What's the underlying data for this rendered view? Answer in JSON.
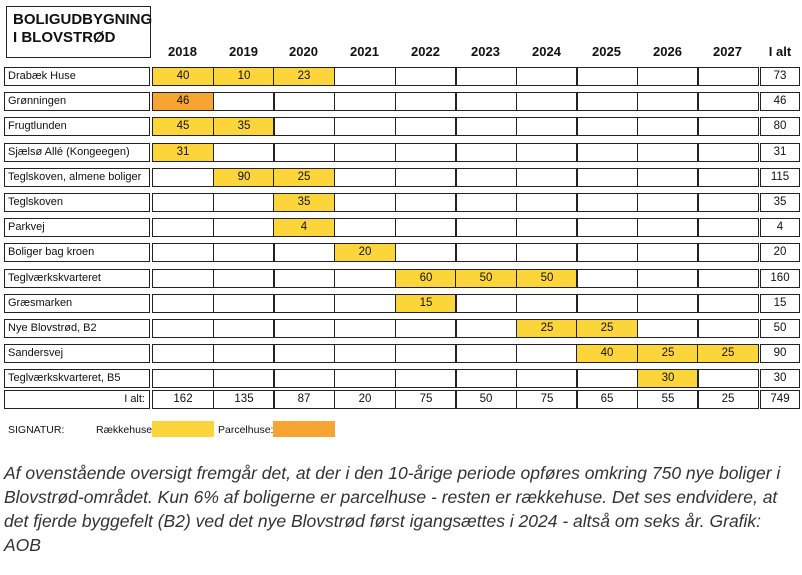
{
  "title": {
    "line1": "BOLIGUDBYGNING",
    "line2": "I BLOVSTRØD"
  },
  "chart_data": {
    "type": "table",
    "columns": [
      "2018",
      "2019",
      "2020",
      "2021",
      "2022",
      "2023",
      "2024",
      "2025",
      "2026",
      "2027",
      "I alt"
    ],
    "rows": [
      {
        "name": "Drabæk Huse",
        "cells": [
          [
            "40",
            "rk"
          ],
          [
            "10",
            "rk"
          ],
          [
            "23",
            "rk"
          ],
          [
            "",
            ""
          ],
          [
            "",
            ""
          ],
          [
            "",
            ""
          ],
          [
            "",
            ""
          ],
          [
            "",
            ""
          ],
          [
            "",
            ""
          ],
          [
            "",
            ""
          ]
        ],
        "total": "73"
      },
      {
        "name": "Grønningen",
        "cells": [
          [
            "46",
            "pc"
          ],
          [
            "",
            ""
          ],
          [
            "",
            ""
          ],
          [
            "",
            ""
          ],
          [
            "",
            ""
          ],
          [
            "",
            ""
          ],
          [
            "",
            ""
          ],
          [
            "",
            ""
          ],
          [
            "",
            ""
          ],
          [
            "",
            ""
          ]
        ],
        "total": "46"
      },
      {
        "name": "Frugtlunden",
        "cells": [
          [
            "45",
            "rk"
          ],
          [
            "35",
            "rk"
          ],
          [
            "",
            ""
          ],
          [
            "",
            ""
          ],
          [
            "",
            ""
          ],
          [
            "",
            ""
          ],
          [
            "",
            ""
          ],
          [
            "",
            ""
          ],
          [
            "",
            ""
          ],
          [
            "",
            ""
          ]
        ],
        "total": "80"
      },
      {
        "name": "Sjælsø Allé (Kongeegen)",
        "cells": [
          [
            "31",
            "rk"
          ],
          [
            "",
            ""
          ],
          [
            "",
            ""
          ],
          [
            "",
            ""
          ],
          [
            "",
            ""
          ],
          [
            "",
            ""
          ],
          [
            "",
            ""
          ],
          [
            "",
            ""
          ],
          [
            "",
            ""
          ],
          [
            "",
            ""
          ]
        ],
        "total": "31"
      },
      {
        "name": "Teglskoven, almene boliger",
        "cells": [
          [
            "",
            ""
          ],
          [
            "90",
            "rk"
          ],
          [
            "25",
            "rk"
          ],
          [
            "",
            ""
          ],
          [
            "",
            ""
          ],
          [
            "",
            ""
          ],
          [
            "",
            ""
          ],
          [
            "",
            ""
          ],
          [
            "",
            ""
          ],
          [
            "",
            ""
          ]
        ],
        "total": "115"
      },
      {
        "name": "Teglskoven",
        "cells": [
          [
            "",
            ""
          ],
          [
            "",
            ""
          ],
          [
            "35",
            "rk"
          ],
          [
            "",
            ""
          ],
          [
            "",
            ""
          ],
          [
            "",
            ""
          ],
          [
            "",
            ""
          ],
          [
            "",
            ""
          ],
          [
            "",
            ""
          ],
          [
            "",
            ""
          ]
        ],
        "total": "35"
      },
      {
        "name": "Parkvej",
        "cells": [
          [
            "",
            ""
          ],
          [
            "",
            ""
          ],
          [
            "4",
            "rk"
          ],
          [
            "",
            ""
          ],
          [
            "",
            ""
          ],
          [
            "",
            ""
          ],
          [
            "",
            ""
          ],
          [
            "",
            ""
          ],
          [
            "",
            ""
          ],
          [
            "",
            ""
          ]
        ],
        "total": "4"
      },
      {
        "name": "Boliger bag kroen",
        "cells": [
          [
            "",
            ""
          ],
          [
            "",
            ""
          ],
          [
            "",
            ""
          ],
          [
            "20",
            "rk"
          ],
          [
            "",
            ""
          ],
          [
            "",
            ""
          ],
          [
            "",
            ""
          ],
          [
            "",
            ""
          ],
          [
            "",
            ""
          ],
          [
            "",
            ""
          ]
        ],
        "total": "20"
      },
      {
        "name": "Teglværkskvarteret",
        "cells": [
          [
            "",
            ""
          ],
          [
            "",
            ""
          ],
          [
            "",
            ""
          ],
          [
            "",
            ""
          ],
          [
            "60",
            "rk"
          ],
          [
            "50",
            "rk"
          ],
          [
            "50",
            "rk"
          ],
          [
            "",
            ""
          ],
          [
            "",
            ""
          ],
          [
            "",
            ""
          ]
        ],
        "total": "160"
      },
      {
        "name": "Græsmarken",
        "cells": [
          [
            "",
            ""
          ],
          [
            "",
            ""
          ],
          [
            "",
            ""
          ],
          [
            "",
            ""
          ],
          [
            "15",
            "rk"
          ],
          [
            "",
            ""
          ],
          [
            "",
            ""
          ],
          [
            "",
            ""
          ],
          [
            "",
            ""
          ],
          [
            "",
            ""
          ]
        ],
        "total": "15"
      },
      {
        "name": "Nye Blovstrød, B2",
        "cells": [
          [
            "",
            ""
          ],
          [
            "",
            ""
          ],
          [
            "",
            ""
          ],
          [
            "",
            ""
          ],
          [
            "",
            ""
          ],
          [
            "",
            ""
          ],
          [
            "25",
            "rk"
          ],
          [
            "25",
            "rk"
          ],
          [
            "",
            ""
          ],
          [
            "",
            ""
          ]
        ],
        "total": "50"
      },
      {
        "name": "Sandersvej",
        "cells": [
          [
            "",
            ""
          ],
          [
            "",
            ""
          ],
          [
            "",
            ""
          ],
          [
            "",
            ""
          ],
          [
            "",
            ""
          ],
          [
            "",
            ""
          ],
          [
            "",
            ""
          ],
          [
            "40",
            "rk"
          ],
          [
            "25",
            "rk"
          ],
          [
            "25",
            "rk"
          ]
        ],
        "total": "90"
      },
      {
        "name": "Teglværkskvarteret, B5",
        "cells": [
          [
            "",
            ""
          ],
          [
            "",
            ""
          ],
          [
            "",
            ""
          ],
          [
            "",
            ""
          ],
          [
            "",
            ""
          ],
          [
            "",
            ""
          ],
          [
            "",
            ""
          ],
          [
            "",
            ""
          ],
          [
            "30",
            "rk"
          ],
          [
            "",
            ""
          ]
        ],
        "total": "30"
      }
    ],
    "sum_label": "I alt:",
    "sums": [
      "162",
      "135",
      "87",
      "20",
      "75",
      "50",
      "75",
      "65",
      "55",
      "25",
      "749"
    ]
  },
  "legend": {
    "signatur": "SIGNATUR:",
    "raekkehuse": "Rækkehuse:",
    "parcelhuse": "Parcelhuse:",
    "raekkehuse_color": "#fcd53b",
    "parcelhuse_color": "#f7a530"
  },
  "caption": "Af ovenstående oversigt fremgår det, at der i den 10-årige periode opføres omkring 750 nye boliger i Blovstrød-området. Kun 6% af boligerne er parcelhuse - resten er rækkehuse. Det ses endvidere, at det fjerde byggefelt (B2) ved det nye Blovstrød først igangsættes i 2024 - altså om seks år. Grafik: AOB"
}
